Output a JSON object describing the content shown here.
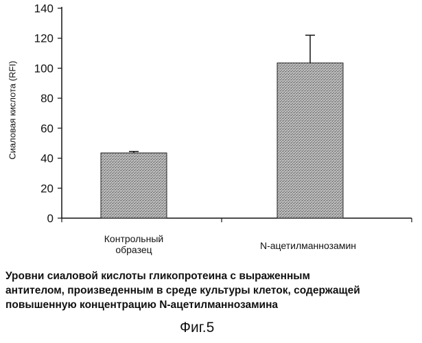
{
  "chart_data": {
    "type": "bar",
    "categories": [
      "Контрольный образец",
      "N-ацетилманнозамин"
    ],
    "category_lines": [
      [
        "Контрольный",
        "образец"
      ],
      [
        "N-ацетилманнозамин"
      ]
    ],
    "values": [
      43.5,
      103.5
    ],
    "error_plus": [
      1.0,
      18.5
    ],
    "ylabel": "Сиаловая кислота (RFI)",
    "xlabel": "",
    "ylim": [
      0,
      140
    ],
    "yticks": [
      0,
      20,
      40,
      60,
      80,
      100,
      120,
      140
    ],
    "grid": false,
    "bar_color": "#a9a9a9"
  },
  "caption_lines": [
    "Уровни сиаловой кислоты гликопротеина с выраженным",
    "антителом, произведенным в среде культуры клеток, содержащей",
    "повышенную концентрацию N-ацетилманнозамина"
  ],
  "figure_label": "Фиг.5"
}
